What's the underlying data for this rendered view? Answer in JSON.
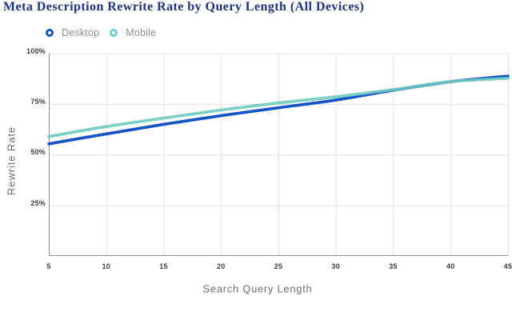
{
  "title": "Meta Description Rewrite Rate by Query Length (All Devices)",
  "legend": {
    "items": [
      {
        "label": "Desktop",
        "color": "#1553c8"
      },
      {
        "label": "Mobile",
        "color": "#6fcdc3"
      }
    ]
  },
  "colors": {
    "title": "#1e3480",
    "desktop_line": "#1553c8",
    "mobile_line": "#6ecbc0",
    "grid": "#e3e3e3",
    "axis": "#8f8f8f",
    "tick_label": "#3d4044",
    "axis_title": "#6b6e73",
    "legend_label": "#8b9096",
    "background": "#ffffff"
  },
  "chart_data": {
    "type": "line",
    "title": "Meta Description Rewrite Rate by Query Length (All Devices)",
    "xlabel": "Search Query Length",
    "ylabel": "Rewrite Rate",
    "x": [
      5,
      10,
      15,
      20,
      25,
      30,
      35,
      40,
      45
    ],
    "series": [
      {
        "name": "Desktop",
        "color": "#1553c8",
        "values": [
          55.3,
          60.2,
          64.9,
          69.2,
          73.1,
          76.9,
          81.75,
          85.95,
          88.7
        ]
      },
      {
        "name": "Mobile",
        "color": "#6ecbc0",
        "opacity": 0.9,
        "values": [
          58.9,
          63.8,
          68.0,
          72.0,
          75.5,
          78.5,
          82.0,
          86.0,
          87.6
        ]
      }
    ],
    "x_ticks": [
      5,
      10,
      15,
      20,
      25,
      30,
      35,
      40,
      45
    ],
    "y_ticks": [
      25,
      50,
      75,
      100
    ],
    "y_tick_labels": [
      "25%",
      "50%",
      "75%",
      "100%"
    ],
    "xlim": [
      5,
      45
    ],
    "ylim": [
      0,
      100
    ],
    "grid": true,
    "legend_position": "top-left"
  }
}
